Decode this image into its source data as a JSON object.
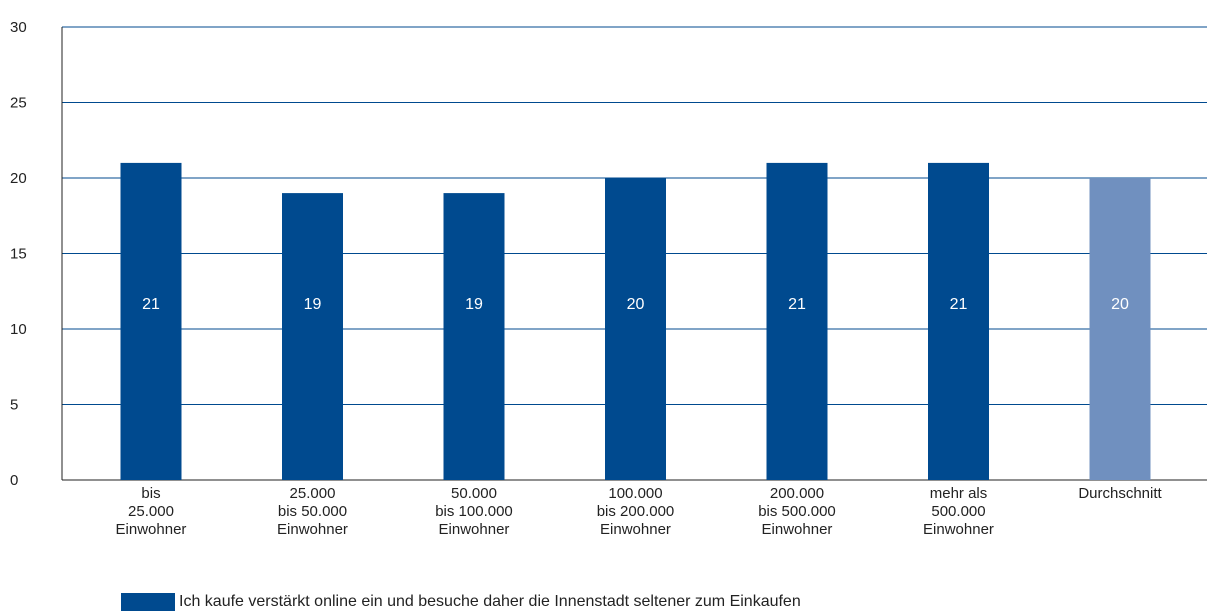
{
  "chart_data": {
    "type": "bar",
    "categories": [
      [
        "bis",
        "25.000",
        "Einwohner"
      ],
      [
        "25.000",
        "bis 50.000",
        "Einwohner"
      ],
      [
        "50.000",
        "bis 100.000",
        "Einwohner"
      ],
      [
        "100.000",
        "bis 200.000",
        "Einwohner"
      ],
      [
        "200.000",
        "bis 500.000",
        "Einwohner"
      ],
      [
        "mehr als",
        "500.000",
        "Einwohner"
      ],
      [
        "Durchschnitt"
      ]
    ],
    "series": [
      {
        "name": "Ich kaufe verstärkt online ein und besuche daher die Innenstadt seltener zum Einkaufen",
        "values": [
          21,
          19,
          19,
          20,
          21,
          21,
          20
        ],
        "data_labels": [
          "21",
          "19",
          "19",
          "20",
          "21",
          "21",
          "20"
        ]
      }
    ],
    "bar_colors": [
      "#004a8f",
      "#004a8f",
      "#004a8f",
      "#004a8f",
      "#004a8f",
      "#004a8f",
      "#7090bf"
    ],
    "ylim": [
      0,
      30
    ],
    "yticks": [
      0,
      5,
      10,
      15,
      20,
      25,
      30
    ],
    "ytick_labels": [
      "0",
      "5",
      "10",
      "15",
      "20",
      "25",
      "30"
    ],
    "grid": true,
    "grid_color": "#004a8f",
    "legend_position": "bottom-left",
    "title": "",
    "xlabel": "",
    "ylabel": ""
  },
  "legend": {
    "label": "Ich kaufe verstärkt online ein und besuche daher die Innenstadt seltener zum Einkaufen",
    "color": "#004a8f"
  }
}
